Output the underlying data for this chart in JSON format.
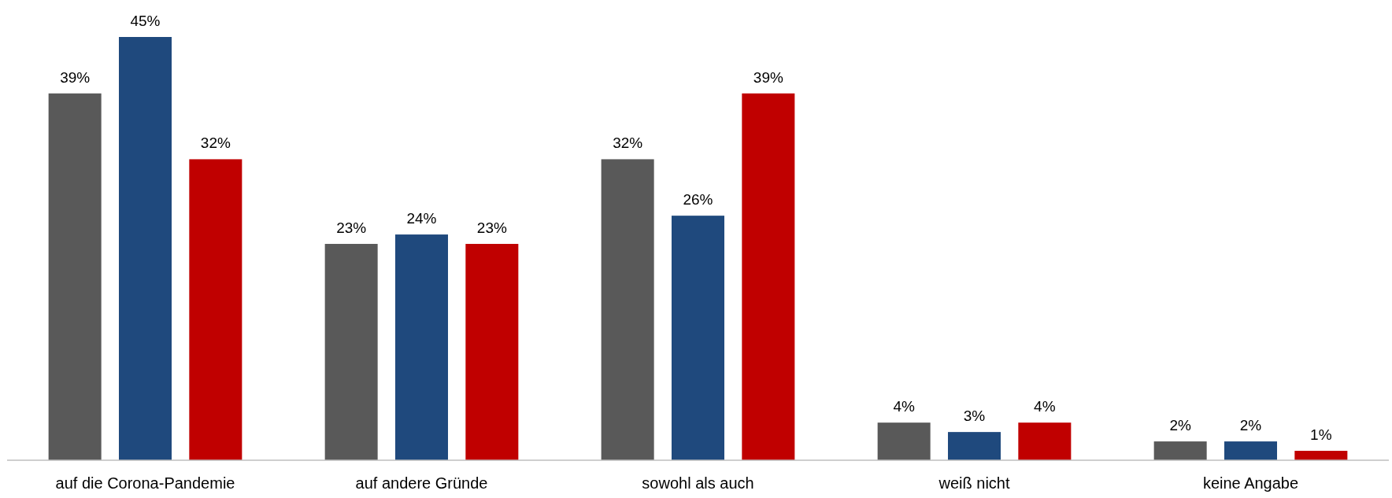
{
  "chart_data": {
    "type": "bar",
    "categories": [
      "auf die Corona-Pandemie",
      "auf andere Gründe",
      "sowohl als auch",
      "weiß nicht",
      "keine Angabe"
    ],
    "series": [
      {
        "color": "#595959",
        "values": [
          39,
          23,
          32,
          4,
          2
        ],
        "value_labels": [
          "39%",
          "23%",
          "32%",
          "4%",
          "2%"
        ]
      },
      {
        "color": "#1f497d",
        "values": [
          45,
          24,
          26,
          3,
          2
        ],
        "value_labels": [
          "45%",
          "24%",
          "26%",
          "3%",
          "2%"
        ]
      },
      {
        "color": "#c00000",
        "values": [
          32,
          23,
          39,
          4,
          1
        ],
        "value_labels": [
          "32%",
          "23%",
          "39%",
          "4%",
          "1%"
        ]
      }
    ]
  }
}
